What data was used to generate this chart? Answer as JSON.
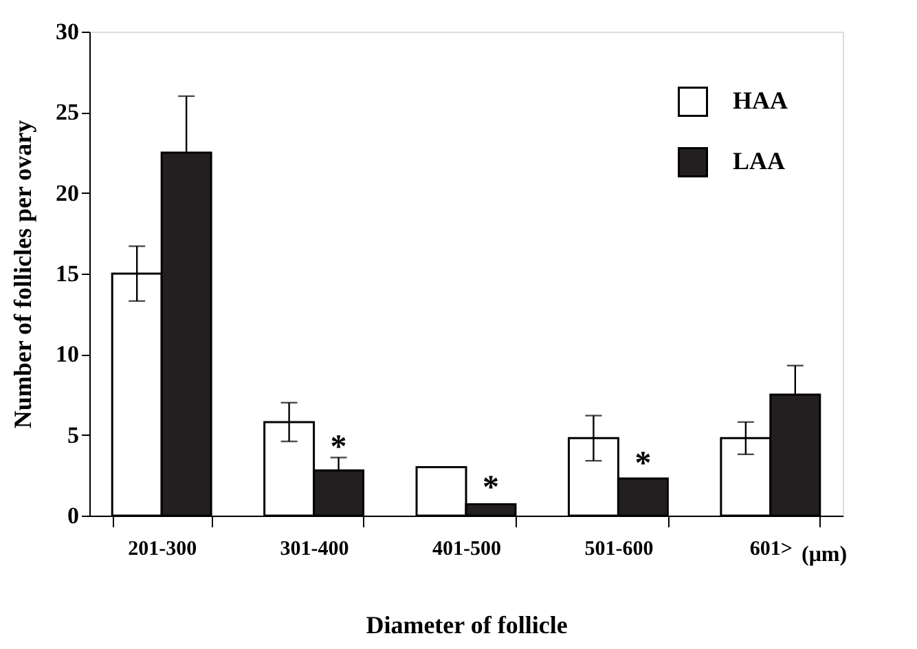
{
  "chart_data": {
    "type": "bar",
    "xlabel": "Diameter of follicle",
    "ylabel": "Number of follicles per ovary",
    "categories": [
      "201-300",
      "301-400",
      "401-500",
      "501-600",
      "601>"
    ],
    "series": [
      {
        "name": "HAA",
        "color": "#ffffff",
        "values": [
          15,
          5.8,
          3.0,
          4.8,
          4.8
        ],
        "errors": [
          1.7,
          1.2,
          null,
          1.4,
          1.0
        ]
      },
      {
        "name": "LAA",
        "color": "#231f20",
        "values": [
          22.5,
          2.8,
          0.7,
          2.3,
          7.5
        ],
        "errors": [
          [
            22.5,
            26.0
          ],
          [
            2.8,
            3.6
          ],
          null,
          null,
          [
            7.5,
            9.3
          ]
        ]
      }
    ],
    "ylim": [
      0,
      30
    ],
    "yticks": [
      0,
      5,
      10,
      15,
      20,
      25,
      30
    ],
    "grid": false,
    "legend": "top right",
    "annotations": [
      {
        "text": "*",
        "x": "301-400",
        "y": 4.2
      },
      {
        "text": "*",
        "x": "401-500",
        "y": 1.7
      },
      {
        "text": "*",
        "x": "501-600",
        "y": 3.2
      },
      "(μm)"
    ]
  }
}
